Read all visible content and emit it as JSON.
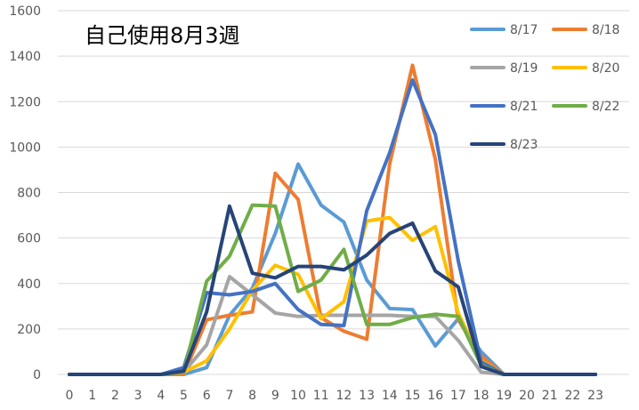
{
  "chart_data": {
    "type": "line",
    "title": "自己使用8月3週",
    "xlabel": "",
    "ylabel": "",
    "x": [
      0,
      1,
      2,
      3,
      4,
      5,
      6,
      7,
      8,
      9,
      10,
      11,
      12,
      13,
      14,
      15,
      16,
      17,
      18,
      19,
      20,
      21,
      22,
      23
    ],
    "ylim": [
      0,
      1600
    ],
    "yticks": [
      0,
      200,
      400,
      600,
      800,
      1000,
      1200,
      1400,
      1600
    ],
    "grid": true,
    "legend_position": "top-right",
    "series": [
      {
        "name": "8/17",
        "color": "#5b9bd5",
        "values": [
          0,
          0,
          0,
          0,
          0,
          0,
          30,
          260,
          380,
          620,
          925,
          745,
          670,
          415,
          290,
          285,
          125,
          245,
          100,
          0,
          0,
          0,
          0,
          0
        ]
      },
      {
        "name": "8/18",
        "color": "#ed7d31",
        "values": [
          0,
          0,
          0,
          0,
          0,
          0,
          240,
          260,
          275,
          885,
          770,
          250,
          190,
          155,
          925,
          1360,
          945,
          240,
          80,
          0,
          0,
          0,
          0,
          0
        ]
      },
      {
        "name": "8/19",
        "color": "#a5a5a5",
        "values": [
          0,
          0,
          0,
          0,
          0,
          10,
          130,
          430,
          350,
          270,
          255,
          260,
          260,
          260,
          260,
          255,
          255,
          150,
          10,
          0,
          0,
          0,
          0,
          0
        ]
      },
      {
        "name": "8/20",
        "color": "#ffc000",
        "values": [
          0,
          0,
          0,
          0,
          0,
          10,
          60,
          200,
          370,
          480,
          440,
          245,
          320,
          675,
          690,
          590,
          650,
          270,
          60,
          0,
          0,
          0,
          0,
          0
        ]
      },
      {
        "name": "8/21",
        "color": "#4472c4",
        "values": [
          0,
          0,
          0,
          0,
          0,
          30,
          360,
          350,
          365,
          400,
          285,
          220,
          215,
          720,
          975,
          1295,
          1055,
          500,
          55,
          0,
          0,
          0,
          0,
          0
        ]
      },
      {
        "name": "8/22",
        "color": "#70ad47",
        "values": [
          0,
          0,
          0,
          0,
          0,
          10,
          410,
          520,
          745,
          740,
          365,
          415,
          550,
          220,
          220,
          250,
          265,
          255,
          40,
          0,
          0,
          0,
          0,
          0
        ]
      },
      {
        "name": "8/23",
        "color": "#264478",
        "values": [
          0,
          0,
          0,
          0,
          0,
          15,
          275,
          740,
          445,
          425,
          475,
          475,
          460,
          525,
          620,
          665,
          455,
          385,
          35,
          0,
          0,
          0,
          0,
          0
        ]
      }
    ]
  }
}
